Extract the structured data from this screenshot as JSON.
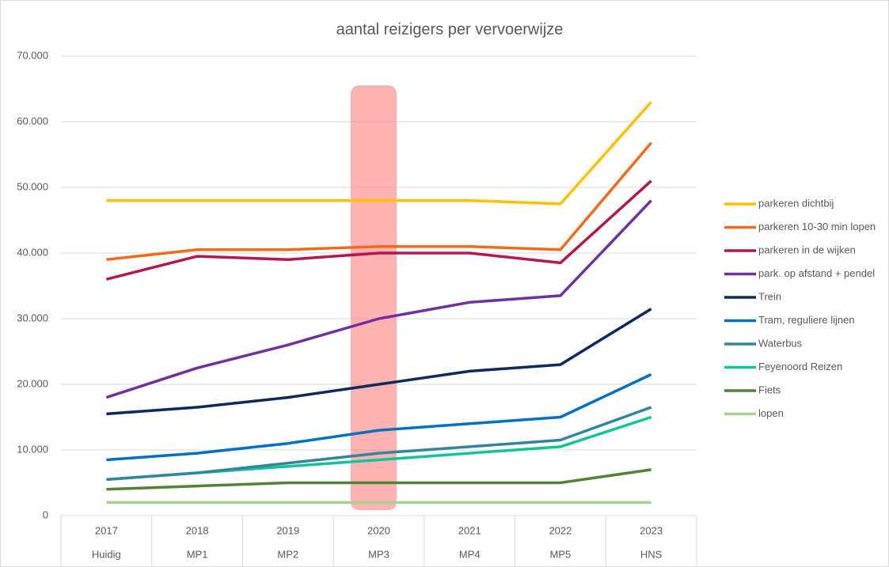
{
  "chart_data": {
    "type": "line",
    "title": "aantal reizigers per vervoerwijze",
    "categories": [
      "2017",
      "2018",
      "2019",
      "2020",
      "2021",
      "2022",
      "2023"
    ],
    "subcategories": [
      "Huidig",
      "MP1",
      "MP2",
      "MP3",
      "MP4",
      "MP5",
      "HNS"
    ],
    "ylim": [
      0,
      70000
    ],
    "yticks": [
      0,
      {
        "value": 10000,
        "label": "10.000"
      },
      {
        "value": 20000,
        "label": "20.000"
      },
      {
        "value": 30000,
        "label": "30.000"
      },
      {
        "value": 40000,
        "label": "40.000"
      },
      {
        "value": 50000,
        "label": "50.000"
      },
      {
        "value": 60000,
        "label": "60.000"
      },
      {
        "value": 70000,
        "label": "70.000"
      }
    ],
    "grid": true,
    "legend": "right",
    "series": [
      {
        "name": "parkeren dichtbij",
        "color": "#ffc000",
        "values": [
          48000,
          48000,
          48000,
          48000,
          48000,
          47500,
          63000
        ]
      },
      {
        "name": "parkeren 10-30 min lopen",
        "color": "#f26b1d",
        "values": [
          39000,
          40500,
          40500,
          41000,
          41000,
          40500,
          56800
        ]
      },
      {
        "name": "parkeren in de wijken",
        "color": "#b5174f",
        "values": [
          36000,
          39500,
          39000,
          40000,
          40000,
          38500,
          51000
        ]
      },
      {
        "name": "park. op afstand + pendel",
        "color": "#7030a0",
        "values": [
          18000,
          22500,
          26000,
          30000,
          32500,
          33500,
          48000
        ]
      },
      {
        "name": "Trein",
        "color": "#0c2a5b",
        "values": [
          15500,
          16500,
          18000,
          20000,
          22000,
          23000,
          31500
        ]
      },
      {
        "name": "Tram, reguliere lijnen",
        "color": "#0070c0",
        "values": [
          8500,
          9500,
          11000,
          13000,
          14000,
          15000,
          21500
        ]
      },
      {
        "name": "Waterbus",
        "color": "#31859c",
        "values": [
          5500,
          6500,
          8000,
          9500,
          10500,
          11500,
          16500
        ]
      },
      {
        "name": "Feyenoord Reizen",
        "color": "#12c49a",
        "values": [
          5500,
          6500,
          7500,
          8500,
          9500,
          10500,
          15000
        ]
      },
      {
        "name": "Fiets",
        "color": "#548235",
        "values": [
          4000,
          4500,
          5000,
          5000,
          5000,
          5000,
          7000
        ]
      },
      {
        "name": "lopen",
        "color": "#a9d18e",
        "values": [
          2000,
          2000,
          2000,
          2000,
          2000,
          2000,
          2000
        ]
      }
    ]
  }
}
